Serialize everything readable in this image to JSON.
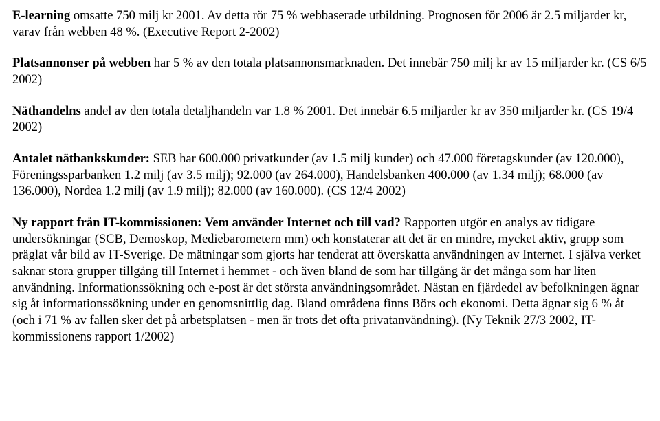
{
  "paragraphs": [
    {
      "runs": [
        {
          "bold": true,
          "text": "E-learning "
        },
        {
          "bold": false,
          "text": "omsatte 750 milj kr 2001. Av detta rör 75 % webbaserade utbildning. Prognosen för 2006 är 2.5 miljarder kr, varav från webben 48 %. (Executive Report 2-2002)"
        }
      ]
    },
    {
      "runs": [
        {
          "bold": true,
          "text": "Platsannonser på webben "
        },
        {
          "bold": false,
          "text": "har 5 % av den totala platsannonsmarknaden. Det innebär 750 milj kr av 15 miljarder kr. (CS 6/5 2002)"
        }
      ]
    },
    {
      "runs": [
        {
          "bold": true,
          "text": "Näthandelns "
        },
        {
          "bold": false,
          "text": "andel av den totala detaljhandeln var 1.8 % 2001. Det innebär 6.5 miljarder kr av 350 miljarder kr. (CS 19/4 2002)"
        }
      ]
    },
    {
      "runs": [
        {
          "bold": true,
          "text": "Antalet nätbankskunder: "
        },
        {
          "bold": false,
          "text": "SEB har 600.000 privatkunder (av 1.5 milj kunder) och 47.000 företagskunder (av 120.000), Föreningssparbanken 1.2 milj (av 3.5 milj); 92.000 (av 264.000), Handelsbanken 400.000 (av 1.34 milj); 68.000 (av 136.000), Nordea 1.2 milj (av 1.9 milj); 82.000 (av 160.000). (CS 12/4 2002)"
        }
      ]
    },
    {
      "runs": [
        {
          "bold": true,
          "text": "Ny rapport från IT-kommissionen: Vem använder Internet och till vad? "
        },
        {
          "bold": false,
          "text": "Rapporten utgör en analys av tidigare undersökningar (SCB, Demoskop, Mediebarometern mm) och konstaterar att det är en mindre, mycket aktiv, grupp som präglat vår bild av IT-Sverige. De mätningar som gjorts har tenderat att överskatta användningen av Internet. I själva verket saknar stora grupper tillgång till Internet i hemmet - och även bland de som har tillgång är det många som har liten användning. Informationssökning och e-post är det största användningsområdet. Nästan en fjärdedel av befolkningen ägnar sig åt informationssökning under en genomsnittlig dag. Bland områdena finns Börs och ekonomi. Detta ägnar sig 6 % åt (och i 71 % av fallen sker det på arbetsplatsen - men är trots det ofta privatanvändning). (Ny Teknik 27/3 2002, IT-kommissionens rapport 1/2002)"
        }
      ]
    }
  ]
}
